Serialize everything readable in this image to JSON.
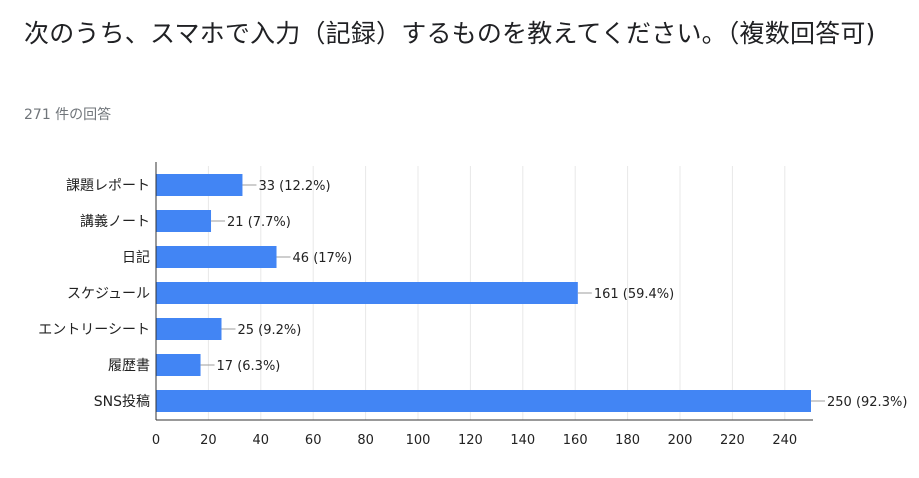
{
  "question": {
    "title": "次のうち、スマホで入力（記録）するものを教えてください。（複数回答可)"
  },
  "responses": {
    "count_text": "271 件の回答"
  },
  "colors": {
    "bar": "#4285f4",
    "grid": "#e8e8e8",
    "axis": "#333333",
    "label": "#222222",
    "title": "#202124",
    "subtext": "#70757a"
  },
  "chart_data": {
    "type": "bar",
    "orientation": "horizontal",
    "categories": [
      "課題レポート",
      "講義ノート",
      "日記",
      "スケジュール",
      "エントリーシート",
      "履歴書",
      "SNS投稿"
    ],
    "values": [
      33,
      21,
      46,
      161,
      25,
      17,
      250
    ],
    "data_labels": [
      "33 (12.2%)",
      "21 (7.7%)",
      "46 (17%)",
      "161 (59.4%)",
      "25 (9.2%)",
      "17 (6.3%)",
      "250 (92.3%)"
    ],
    "xlim": [
      0,
      250
    ],
    "xticks": [
      0,
      20,
      40,
      60,
      80,
      100,
      120,
      140,
      160,
      180,
      200,
      220,
      240
    ],
    "grid": true
  }
}
